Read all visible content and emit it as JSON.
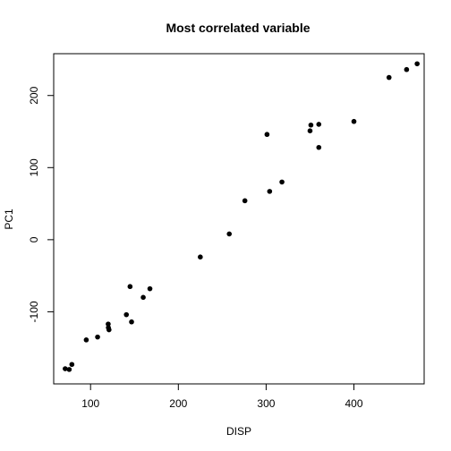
{
  "chart_data": {
    "type": "scatter",
    "title": "Most correlated variable",
    "xlabel": "DISP",
    "ylabel": "PC1",
    "xlim": [
      58,
      480
    ],
    "ylim": [
      -200,
      258
    ],
    "xticks": [
      100,
      200,
      300,
      400
    ],
    "xtick_labels": [
      "100",
      "200",
      "300",
      "400"
    ],
    "yticks": [
      -100,
      0,
      100,
      200
    ],
    "ytick_labels": [
      "-100",
      "0",
      "100",
      "200"
    ],
    "grid": false,
    "legend": "none",
    "point_color": "#000000",
    "points": [
      {
        "x": 71.1,
        "y": -179
      },
      {
        "x": 75.7,
        "y": -180
      },
      {
        "x": 78.7,
        "y": -173
      },
      {
        "x": 95.1,
        "y": -139
      },
      {
        "x": 108.0,
        "y": -135
      },
      {
        "x": 120.1,
        "y": -117
      },
      {
        "x": 120.3,
        "y": -122
      },
      {
        "x": 121.0,
        "y": -125
      },
      {
        "x": 140.8,
        "y": -104
      },
      {
        "x": 145.0,
        "y": -65
      },
      {
        "x": 146.7,
        "y": -114
      },
      {
        "x": 160.0,
        "y": -80
      },
      {
        "x": 167.6,
        "y": -68
      },
      {
        "x": 225.0,
        "y": -24
      },
      {
        "x": 258.0,
        "y": 8
      },
      {
        "x": 275.8,
        "y": 54
      },
      {
        "x": 301.0,
        "y": 146
      },
      {
        "x": 304.0,
        "y": 67
      },
      {
        "x": 318.0,
        "y": 80
      },
      {
        "x": 350.0,
        "y": 151
      },
      {
        "x": 351.0,
        "y": 159
      },
      {
        "x": 360.0,
        "y": 160
      },
      {
        "x": 360.0,
        "y": 128
      },
      {
        "x": 400.0,
        "y": 164
      },
      {
        "x": 440.0,
        "y": 225
      },
      {
        "x": 460.0,
        "y": 236
      },
      {
        "x": 472.0,
        "y": 244
      }
    ]
  }
}
